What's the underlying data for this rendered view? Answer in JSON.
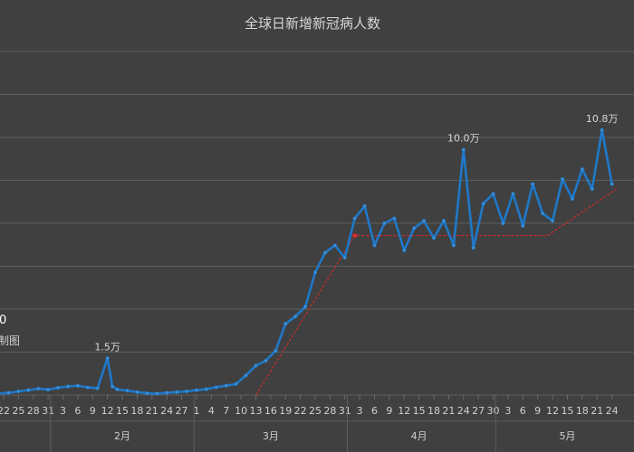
{
  "chart_data": {
    "type": "line",
    "title": "全球日新增新冠病人数",
    "xlabel": "",
    "ylabel": "",
    "day_ticks": [
      "22",
      "25",
      "28",
      "31",
      "3",
      "6",
      "9",
      "12",
      "15",
      "18",
      "21",
      "24",
      "27",
      "1",
      "4",
      "7",
      "10",
      "13",
      "16",
      "19",
      "22",
      "25",
      "28",
      "31",
      "3",
      "6",
      "9",
      "12",
      "15",
      "18",
      "21",
      "24",
      "27",
      "30",
      "3",
      "6",
      "9",
      "12",
      "15",
      "18",
      "21",
      "24"
    ],
    "month_labels": [
      "2月",
      "3月",
      "4月",
      "5月"
    ],
    "ylim": [
      0,
      140000
    ],
    "grid": true,
    "series": [
      {
        "color": "#1f78c8",
        "x": [
          "1-21",
          "1-23",
          "1-25",
          "1-27",
          "1-29",
          "1-31",
          "2-2",
          "2-4",
          "2-6",
          "2-8",
          "2-10",
          "2-12",
          "2-13",
          "2-14",
          "2-16",
          "2-18",
          "2-20",
          "2-22",
          "2-24",
          "2-26",
          "2-28",
          "3-1",
          "3-3",
          "3-5",
          "3-7",
          "3-9",
          "3-11",
          "3-13",
          "3-15",
          "3-17",
          "3-19",
          "3-21",
          "3-23",
          "3-25",
          "3-27",
          "3-29",
          "3-31",
          "4-2",
          "4-4",
          "4-6",
          "4-8",
          "4-10",
          "4-12",
          "4-14",
          "4-16",
          "4-18",
          "4-20",
          "4-22",
          "4-24",
          "4-26",
          "4-28",
          "4-30",
          "5-2",
          "5-4",
          "5-6",
          "5-8",
          "5-10",
          "5-12",
          "5-14",
          "5-16",
          "5-18",
          "5-20",
          "5-22",
          "5-24"
        ],
        "y": [
          600,
          900,
          1500,
          2000,
          2600,
          2200,
          3000,
          3500,
          3800,
          3100,
          2800,
          15000,
          3500,
          2300,
          1800,
          1200,
          700,
          600,
          900,
          1200,
          1500,
          2000,
          2400,
          3200,
          3800,
          4500,
          8000,
          12000,
          14000,
          18000,
          29000,
          32000,
          36000,
          50000,
          58000,
          61000,
          56000,
          72000,
          77000,
          61000,
          70000,
          72000,
          59000,
          68000,
          71000,
          64000,
          71000,
          61000,
          100000,
          60000,
          78000,
          82000,
          70000,
          82000,
          69000,
          86000,
          74000,
          71000,
          88000,
          80000,
          92000,
          84000,
          108000,
          86000
        ]
      }
    ],
    "annotations": [
      {
        "text": "1.5万",
        "x": "2-12",
        "y": 15000
      },
      {
        "text": "10.0万",
        "x": "4-24",
        "y": 100000
      },
      {
        "text": "10.8万",
        "x": "5-22",
        "y": 108000
      }
    ],
    "trend_lines": [
      {
        "color": "#d02b2b",
        "points": [
          [
            "3-13",
            0
          ],
          [
            "4-2",
            65000
          ],
          [
            "5-11",
            65000
          ],
          [
            "5-25",
            84000
          ]
        ]
      }
    ],
    "clipped_texts": [
      "0",
      "制图"
    ]
  }
}
